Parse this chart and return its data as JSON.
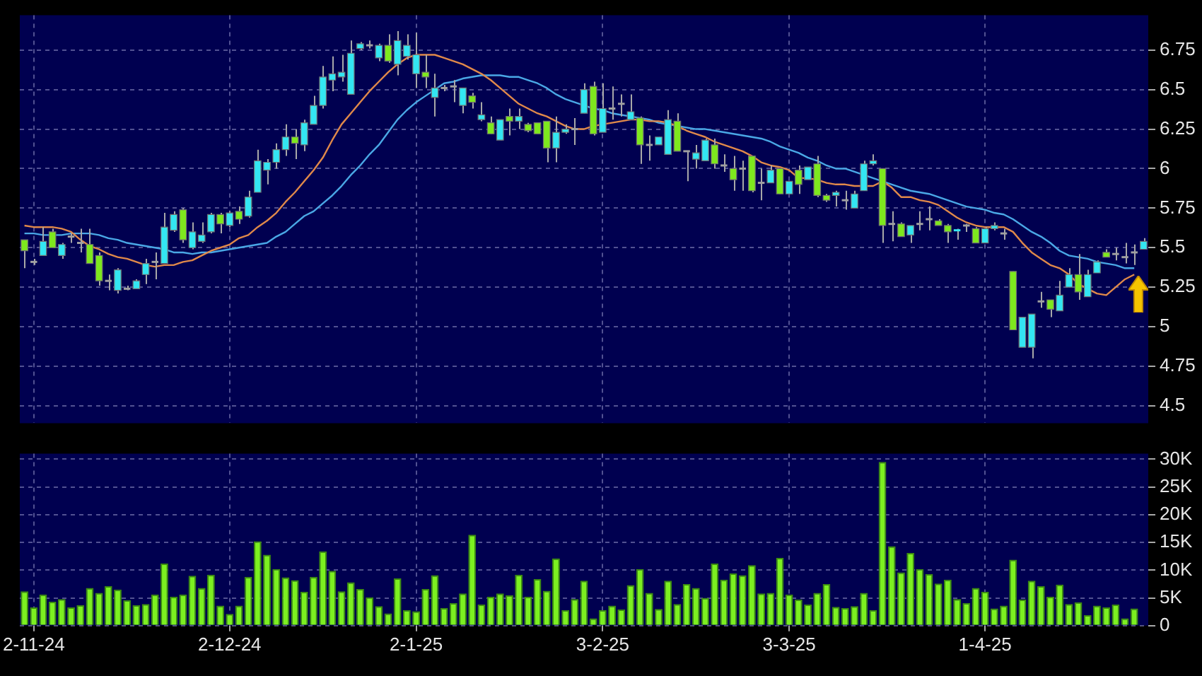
{
  "chart_data": [
    {
      "type": "candlestick",
      "tick_labels": "y",
      "grid": true,
      "ylim": [
        4.39,
        6.97
      ],
      "yticks": [
        4.5,
        4.75,
        5,
        5.25,
        5.5,
        5.75,
        6,
        6.25,
        6.5,
        6.75
      ],
      "ohlc": [
        [
          5.55,
          5.55,
          5.37,
          5.48
        ],
        [
          5.41,
          5.43,
          5.39,
          5.41
        ],
        [
          5.45,
          5.63,
          5.45,
          5.54
        ],
        [
          5.6,
          5.62,
          5.5,
          5.5
        ],
        [
          5.45,
          5.53,
          5.43,
          5.52
        ],
        [
          5.57,
          5.59,
          5.53,
          5.57
        ],
        [
          5.53,
          5.62,
          5.47,
          5.53
        ],
        [
          5.52,
          5.62,
          5.4,
          5.4
        ],
        [
          5.45,
          5.47,
          5.26,
          5.29
        ],
        [
          5.29,
          5.33,
          5.23,
          5.29
        ],
        [
          5.23,
          5.37,
          5.21,
          5.36
        ],
        [
          5.24,
          5.26,
          5.23,
          5.24
        ],
        [
          5.24,
          5.3,
          5.24,
          5.29
        ],
        [
          5.33,
          5.43,
          5.27,
          5.4
        ],
        [
          5.41,
          5.47,
          5.3,
          5.41
        ],
        [
          5.4,
          5.72,
          5.4,
          5.63
        ],
        [
          5.61,
          5.73,
          5.6,
          5.71
        ],
        [
          5.74,
          5.75,
          5.53,
          5.55
        ],
        [
          5.5,
          5.66,
          5.49,
          5.6
        ],
        [
          5.54,
          5.66,
          5.53,
          5.58
        ],
        [
          5.6,
          5.72,
          5.59,
          5.71
        ],
        [
          5.71,
          5.72,
          5.59,
          5.65
        ],
        [
          5.64,
          5.73,
          5.63,
          5.72
        ],
        [
          5.73,
          5.76,
          5.65,
          5.68
        ],
        [
          5.7,
          5.86,
          5.69,
          5.82
        ],
        [
          5.85,
          6.12,
          5.85,
          6.05
        ],
        [
          5.99,
          6.06,
          5.9,
          6.04
        ],
        [
          6.04,
          6.16,
          6,
          6.12
        ],
        [
          6.12,
          6.28,
          6.08,
          6.2
        ],
        [
          6.2,
          6.25,
          6.06,
          6.16
        ],
        [
          6.15,
          6.31,
          6.11,
          6.29
        ],
        [
          6.28,
          6.46,
          6.28,
          6.4
        ],
        [
          6.4,
          6.65,
          6.38,
          6.58
        ],
        [
          6.56,
          6.71,
          6.49,
          6.6
        ],
        [
          6.58,
          6.72,
          6.55,
          6.61
        ],
        [
          6.47,
          6.81,
          6.47,
          6.73
        ],
        [
          6.76,
          6.8,
          6.75,
          6.79
        ],
        [
          6.78,
          6.81,
          6.76,
          6.78
        ],
        [
          6.7,
          6.79,
          6.68,
          6.78
        ],
        [
          6.78,
          6.85,
          6.67,
          6.68
        ],
        [
          6.66,
          6.87,
          6.59,
          6.81
        ],
        [
          6.71,
          6.85,
          6.69,
          6.78
        ],
        [
          6.6,
          6.86,
          6.51,
          6.72
        ],
        [
          6.61,
          6.72,
          6.51,
          6.58
        ],
        [
          6.45,
          6.6,
          6.33,
          6.51
        ],
        [
          6.51,
          6.53,
          6.49,
          6.51
        ],
        [
          6.52,
          6.56,
          6.42,
          6.52
        ],
        [
          6.4,
          6.51,
          6.35,
          6.51
        ],
        [
          6.46,
          6.48,
          6.38,
          6.42
        ],
        [
          6.31,
          6.42,
          6.3,
          6.34
        ],
        [
          6.29,
          6.33,
          6.22,
          6.22
        ],
        [
          6.18,
          6.31,
          6.18,
          6.31
        ],
        [
          6.33,
          6.38,
          6.21,
          6.3
        ],
        [
          6.3,
          6.38,
          6.25,
          6.33
        ],
        [
          6.28,
          6.29,
          6.23,
          6.24
        ],
        [
          6.29,
          6.29,
          6.22,
          6.22
        ],
        [
          6.3,
          6.3,
          6.04,
          6.13
        ],
        [
          6.13,
          6.33,
          6.04,
          6.23
        ],
        [
          6.23,
          6.28,
          6.22,
          6.25
        ],
        [
          6.25,
          6.32,
          6.15,
          6.25
        ],
        [
          6.35,
          6.54,
          6.35,
          6.5
        ],
        [
          6.52,
          6.55,
          6.21,
          6.22
        ],
        [
          6.23,
          6.54,
          6.23,
          6.38
        ],
        [
          6.38,
          6.52,
          6.31,
          6.38
        ],
        [
          6.41,
          6.47,
          6.33,
          6.41
        ],
        [
          6.31,
          6.47,
          6.31,
          6.36
        ],
        [
          6.32,
          6.33,
          6.03,
          6.15
        ],
        [
          6.15,
          6.21,
          6.05,
          6.15
        ],
        [
          6.15,
          6.2,
          6.15,
          6.2
        ],
        [
          6.09,
          6.37,
          6.09,
          6.31
        ],
        [
          6.3,
          6.35,
          6.11,
          6.11
        ],
        [
          6.11,
          6.11,
          5.92,
          6.11
        ],
        [
          6.06,
          6.15,
          6,
          6.1
        ],
        [
          6.05,
          6.19,
          6.05,
          6.18
        ],
        [
          6.15,
          6.19,
          6,
          6.03
        ],
        [
          6.02,
          6.09,
          5.98,
          6.02
        ],
        [
          6,
          6.08,
          5.86,
          5.93
        ],
        [
          6,
          6.05,
          5.86,
          6
        ],
        [
          6.08,
          6.08,
          5.85,
          5.86
        ],
        [
          5.91,
          6,
          5.8,
          5.91
        ],
        [
          5.91,
          6.02,
          5.91,
          5.99
        ],
        [
          6,
          6,
          5.84,
          5.84
        ],
        [
          5.84,
          5.92,
          5.84,
          5.92
        ],
        [
          5.99,
          6.02,
          5.84,
          5.9
        ],
        [
          5.93,
          6.01,
          5.93,
          6.01
        ],
        [
          6.03,
          6.08,
          5.82,
          5.83
        ],
        [
          5.83,
          5.84,
          5.79,
          5.8
        ],
        [
          5.83,
          5.86,
          5.76,
          5.85
        ],
        [
          5.8,
          5.86,
          5.74,
          5.8
        ],
        [
          5.75,
          5.86,
          5.75,
          5.84
        ],
        [
          5.86,
          6.05,
          5.86,
          6.03
        ],
        [
          6.03,
          6.09,
          6.02,
          6.05
        ],
        [
          6,
          6,
          5.53,
          5.64
        ],
        [
          5.65,
          5.73,
          5.54,
          5.65
        ],
        [
          5.65,
          5.66,
          5.57,
          5.57
        ],
        [
          5.58,
          5.64,
          5.53,
          5.64
        ],
        [
          5.65,
          5.73,
          5.61,
          5.65
        ],
        [
          5.68,
          5.76,
          5.61,
          5.68
        ],
        [
          5.67,
          5.68,
          5.64,
          5.64
        ],
        [
          5.64,
          5.65,
          5.53,
          5.6
        ],
        [
          5.6,
          5.62,
          5.55,
          5.61
        ],
        [
          5.64,
          5.65,
          5.6,
          5.64
        ],
        [
          5.62,
          5.63,
          5.53,
          5.53
        ],
        [
          5.53,
          5.63,
          5.53,
          5.62
        ],
        [
          5.62,
          5.66,
          5.61,
          5.64
        ],
        [
          5.59,
          5.62,
          5.55,
          5.59
        ],
        [
          5.35,
          5.35,
          4.98,
          4.98
        ],
        [
          4.87,
          5.06,
          4.87,
          5.06
        ],
        [
          4.87,
          5.08,
          4.8,
          5.08
        ],
        [
          5.16,
          5.22,
          5.12,
          5.16
        ],
        [
          5.17,
          5.17,
          5.06,
          5.11
        ],
        [
          5.1,
          5.29,
          5.1,
          5.2
        ],
        [
          5.25,
          5.37,
          5.25,
          5.33
        ],
        [
          5.33,
          5.46,
          5.17,
          5.22
        ],
        [
          5.19,
          5.36,
          5.19,
          5.33
        ],
        [
          5.34,
          5.42,
          5.34,
          5.41
        ],
        [
          5.47,
          5.49,
          5.44,
          5.44
        ],
        [
          5.46,
          5.5,
          5.42,
          5.46
        ],
        [
          5.44,
          5.53,
          5.4,
          5.44
        ],
        [
          5.47,
          5.52,
          5.39,
          5.47
        ],
        [
          5.49,
          5.56,
          5.49,
          5.54
        ]
      ],
      "colors": [
        "#7ee81e",
        "#a0a0a0",
        "#33e6f2",
        "#7ee81e",
        "#33e6f2",
        "#a0a0a0",
        "#a0a0a0",
        "#7ee81e",
        "#7ee81e",
        "#a0a0a0",
        "#33e6f2",
        "#a0a0a0",
        "#33e6f2",
        "#33e6f2",
        "#a0a0a0",
        "#33e6f2",
        "#33e6f2",
        "#7ee81e",
        "#33e6f2",
        "#33e6f2",
        "#33e6f2",
        "#7ee81e",
        "#33e6f2",
        "#7ee81e",
        "#33e6f2",
        "#33e6f2",
        "#33e6f2",
        "#33e6f2",
        "#33e6f2",
        "#7ee81e",
        "#33e6f2",
        "#33e6f2",
        "#33e6f2",
        "#33e6f2",
        "#33e6f2",
        "#33e6f2",
        "#33e6f2",
        "#a0a0a0",
        "#33e6f2",
        "#7ee81e",
        "#33e6f2",
        "#33e6f2",
        "#33e6f2",
        "#7ee81e",
        "#33e6f2",
        "#a0a0a0",
        "#a0a0a0",
        "#33e6f2",
        "#7ee81e",
        "#33e6f2",
        "#7ee81e",
        "#33e6f2",
        "#7ee81e",
        "#33e6f2",
        "#7ee81e",
        "#7ee81e",
        "#7ee81e",
        "#33e6f2",
        "#33e6f2",
        "#a0a0a0",
        "#33e6f2",
        "#7ee81e",
        "#33e6f2",
        "#a0a0a0",
        "#a0a0a0",
        "#33e6f2",
        "#7ee81e",
        "#a0a0a0",
        "#33e6f2",
        "#33e6f2",
        "#7ee81e",
        "#a0a0a0",
        "#33e6f2",
        "#33e6f2",
        "#7ee81e",
        "#a0a0a0",
        "#7ee81e",
        "#a0a0a0",
        "#7ee81e",
        "#a0a0a0",
        "#33e6f2",
        "#7ee81e",
        "#33e6f2",
        "#7ee81e",
        "#33e6f2",
        "#7ee81e",
        "#7ee81e",
        "#33e6f2",
        "#a0a0a0",
        "#33e6f2",
        "#33e6f2",
        "#33e6f2",
        "#7ee81e",
        "#a0a0a0",
        "#7ee81e",
        "#33e6f2",
        "#a0a0a0",
        "#a0a0a0",
        "#7ee81e",
        "#7ee81e",
        "#33e6f2",
        "#a0a0a0",
        "#7ee81e",
        "#33e6f2",
        "#33e6f2",
        "#a0a0a0",
        "#7ee81e",
        "#33e6f2",
        "#33e6f2",
        "#a0a0a0",
        "#7ee81e",
        "#33e6f2",
        "#33e6f2",
        "#7ee81e",
        "#33e6f2",
        "#33e6f2",
        "#7ee81e",
        "#a0a0a0",
        "#a0a0a0",
        "#a0a0a0",
        "#33e6f2"
      ],
      "series": [
        {
          "type": "line",
          "color": "#e0894a",
          "values": [
            5.64,
            5.63,
            5.63,
            5.63,
            5.62,
            5.6,
            5.55,
            5.51,
            5.49,
            5.46,
            5.44,
            5.43,
            5.41,
            5.39,
            5.38,
            5.39,
            5.39,
            5.41,
            5.42,
            5.45,
            5.48,
            5.5,
            5.52,
            5.56,
            5.58,
            5.63,
            5.67,
            5.72,
            5.79,
            5.85,
            5.92,
            5.99,
            6.07,
            6.18,
            6.28,
            6.35,
            6.42,
            6.49,
            6.55,
            6.61,
            6.66,
            6.7,
            6.72,
            6.72,
            6.72,
            6.7,
            6.68,
            6.66,
            6.63,
            6.6,
            6.56,
            6.51,
            6.46,
            6.41,
            6.38,
            6.35,
            6.33,
            6.3,
            6.27,
            6.25,
            6.25,
            6.27,
            6.28,
            6.29,
            6.3,
            6.31,
            6.31,
            6.3,
            6.3,
            6.29,
            6.27,
            6.24,
            6.22,
            6.2,
            6.17,
            6.15,
            6.13,
            6.11,
            6.08,
            6.04,
            6.02,
            6.01,
            5.99,
            5.94,
            5.94,
            5.93,
            5.91,
            5.9,
            5.9,
            5.89,
            5.89,
            5.89,
            5.92,
            5.88,
            5.82,
            5.82,
            5.8,
            5.79,
            5.77,
            5.73,
            5.69,
            5.66,
            5.64,
            5.63,
            5.63,
            5.63,
            5.6,
            5.53,
            5.47,
            5.43,
            5.39,
            5.37,
            5.33,
            5.27,
            5.24,
            5.21,
            5.2,
            5.25,
            5.3,
            5.33,
            null
          ]
        },
        {
          "type": "line",
          "color": "#4aa8e6",
          "values": [
            5.59,
            5.59,
            5.58,
            5.58,
            5.58,
            5.59,
            5.59,
            5.59,
            5.58,
            5.56,
            5.55,
            5.53,
            5.52,
            5.51,
            5.5,
            5.49,
            5.47,
            5.47,
            5.46,
            5.47,
            5.47,
            5.48,
            5.49,
            5.5,
            5.51,
            5.52,
            5.53,
            5.57,
            5.6,
            5.65,
            5.7,
            5.73,
            5.78,
            5.83,
            5.89,
            5.96,
            6.02,
            6.09,
            6.15,
            6.23,
            6.31,
            6.37,
            6.42,
            6.46,
            6.5,
            6.54,
            6.55,
            6.57,
            6.58,
            6.59,
            6.59,
            6.59,
            6.58,
            6.58,
            6.56,
            6.54,
            6.51,
            6.47,
            6.44,
            6.42,
            6.4,
            6.38,
            6.37,
            6.35,
            6.34,
            6.33,
            6.32,
            6.31,
            6.29,
            6.28,
            6.27,
            6.26,
            6.25,
            6.25,
            6.24,
            6.23,
            6.22,
            6.21,
            6.2,
            6.19,
            6.17,
            6.14,
            6.12,
            6.1,
            6.07,
            6.05,
            6.02,
            6,
            6,
            5.98,
            5.96,
            5.94,
            5.92,
            5.9,
            5.88,
            5.86,
            5.85,
            5.84,
            5.82,
            5.8,
            5.78,
            5.76,
            5.75,
            5.74,
            5.72,
            5.71,
            5.68,
            5.64,
            5.6,
            5.57,
            5.53,
            5.48,
            5.45,
            5.44,
            5.43,
            5.41,
            5.4,
            5.39,
            5.37,
            5.37,
            null
          ]
        }
      ]
    },
    {
      "type": "bar",
      "grid": true,
      "color": "#7cf020",
      "ylim": [
        0,
        31
      ],
      "yticks": [
        0,
        {
          "value": 5,
          "label": "5K"
        },
        {
          "value": 10,
          "label": "10K"
        },
        {
          "value": 15,
          "label": "15K"
        },
        {
          "value": 20,
          "label": "20K"
        },
        {
          "value": 25,
          "label": "25K"
        },
        {
          "value": 30,
          "label": "30K"
        }
      ],
      "categories": [
        null,
        "2-11-24",
        null,
        null,
        null,
        null,
        null,
        null,
        null,
        null,
        null,
        null,
        null,
        null,
        null,
        null,
        null,
        null,
        null,
        null,
        null,
        null,
        "2-12-24",
        null,
        null,
        null,
        null,
        null,
        null,
        null,
        null,
        null,
        null,
        null,
        null,
        null,
        null,
        null,
        null,
        null,
        null,
        null,
        "2-1-25",
        null,
        null,
        null,
        null,
        null,
        null,
        null,
        null,
        null,
        null,
        null,
        null,
        null,
        null,
        null,
        null,
        null,
        null,
        null,
        "3-2-25",
        null,
        null,
        null,
        null,
        null,
        null,
        null,
        null,
        null,
        null,
        null,
        null,
        null,
        null,
        null,
        null,
        null,
        null,
        null,
        "3-3-25",
        null,
        null,
        null,
        null,
        null,
        null,
        null,
        null,
        null,
        null,
        null,
        null,
        null,
        null,
        null,
        null,
        null,
        null,
        null,
        null,
        "1-4-25",
        null,
        null,
        null,
        null,
        null,
        null,
        null,
        null,
        null,
        null,
        null,
        null,
        null,
        null,
        null,
        null,
        null
      ],
      "values": [
        6.2,
        3.3,
        5.6,
        4.3,
        4.8,
        3.3,
        3.7,
        6.8,
        5.9,
        7.1,
        6.5,
        4.6,
        3.7,
        3.9,
        5.6,
        11.2,
        5.2,
        5.6,
        9,
        6.8,
        9.2,
        3.6,
        2.1,
        3.6,
        8.8,
        15.2,
        12.8,
        10.2,
        8.7,
        8.2,
        6.1,
        8.8,
        13.4,
        9.9,
        6.2,
        7.8,
        6.6,
        5.1,
        3.5,
        2.2,
        8.5,
        2.8,
        2.6,
        6.6,
        9.1,
        3.2,
        4.1,
        5.8,
        16.4,
        3.8,
        5.2,
        5.8,
        5.5,
        9.2,
        5.2,
        8.4,
        6.3,
        12.1,
        2.8,
        4.8,
        8.1,
        1.3,
        2.8,
        3.6,
        2.9,
        7.3,
        10.2,
        5.9,
        3,
        8.1,
        3.9,
        7.5,
        6.8,
        5,
        11.2,
        8.3,
        9.4,
        9.1,
        10.9,
        5.8,
        5.9,
        12.2,
        5.6,
        4.7,
        3.8,
        5.9,
        7.5,
        3.4,
        3.2,
        3.5,
        5.9,
        2.8,
        29.5,
        14.3,
        9.6,
        13.1,
        10.2,
        9.3,
        7.6,
        8.3,
        4.8,
        4.1,
        6.8,
        6.1,
        3.1,
        3.6,
        11.9,
        4.7,
        8.1,
        7.1,
        5.2,
        7.4,
        3.9,
        4.2,
        1.9,
        3.6,
        3.3,
        3.8,
        1.3,
        3.1,
        null
      ]
    }
  ]
}
